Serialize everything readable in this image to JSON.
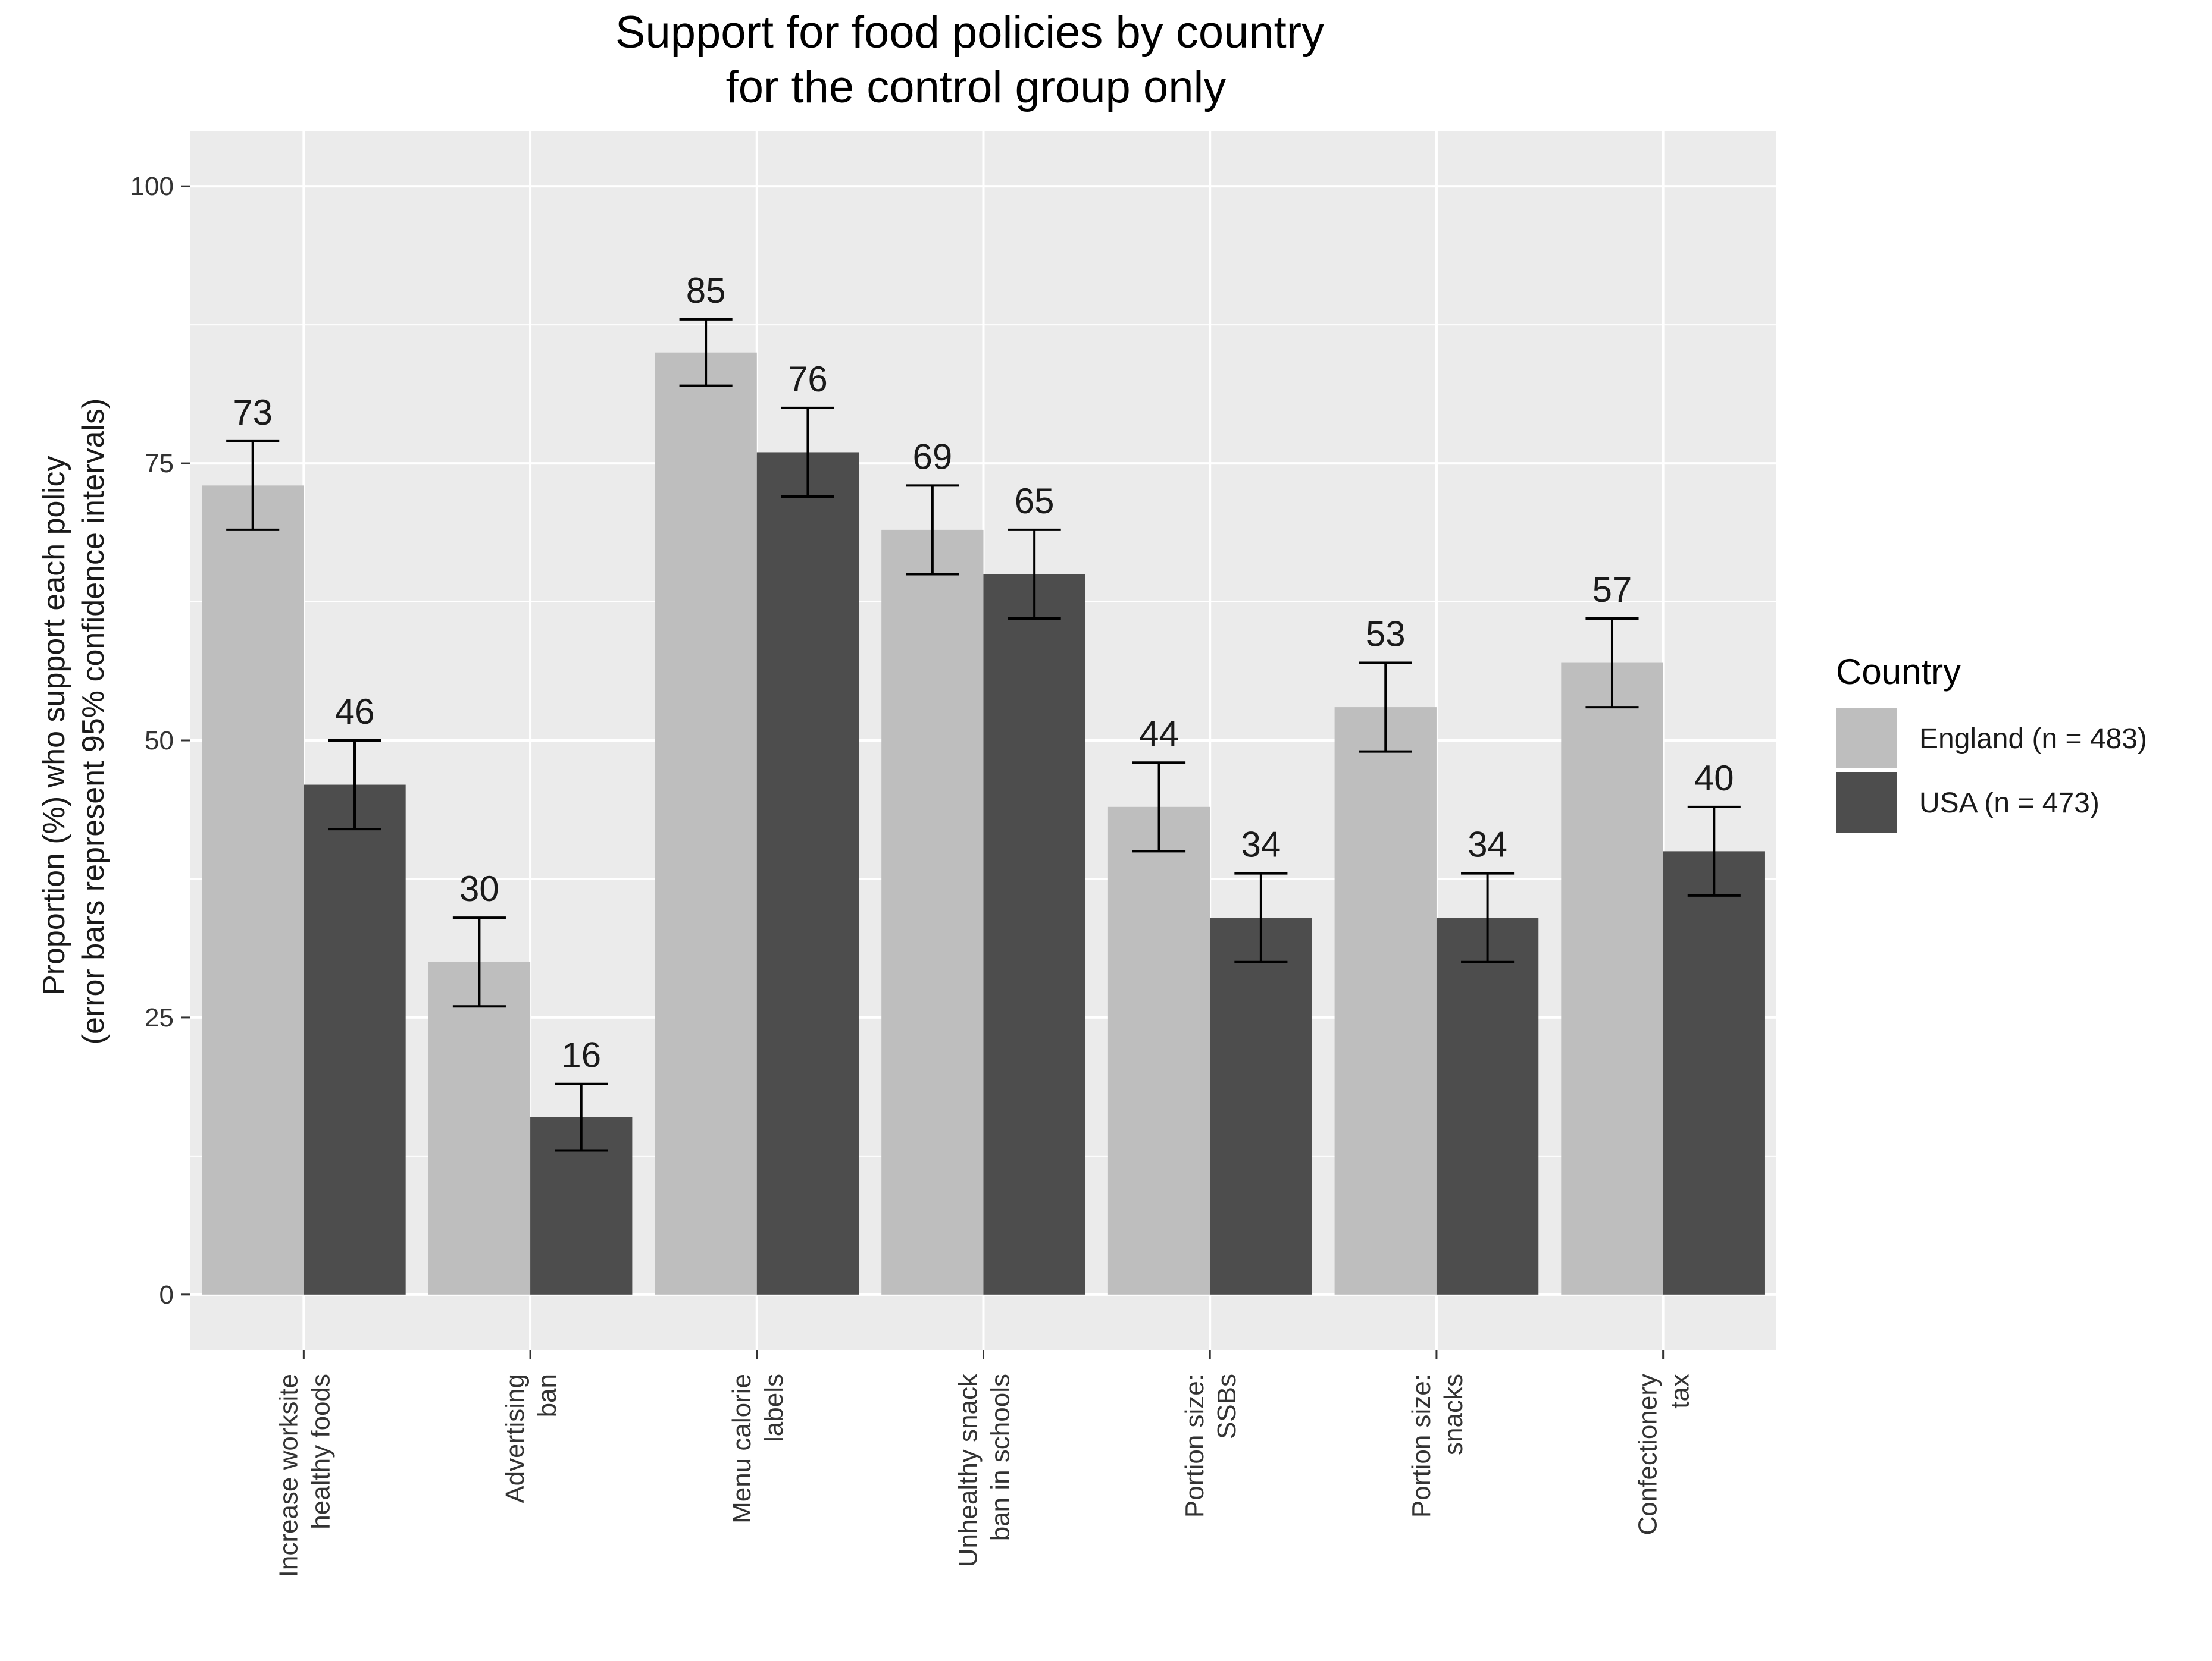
{
  "chart_data": {
    "type": "bar",
    "title": [
      "Support for food policies by country",
      "for the control group only"
    ],
    "ylabel": [
      "Proportion (%) who support each policy",
      "(error bars represent 95% confidence intervals)"
    ],
    "xlabel": "",
    "ylim": [
      -5,
      105
    ],
    "yticks": [
      0,
      25,
      50,
      75,
      100
    ],
    "categories": [
      [
        "Increase worksite",
        "healthy foods"
      ],
      [
        "Advertising",
        "ban"
      ],
      [
        "Menu calorie",
        "labels"
      ],
      [
        "Unhealthy snack",
        "ban in schools"
      ],
      [
        "Portion size:",
        "SSBs"
      ],
      [
        "Portion size:",
        "snacks"
      ],
      [
        "Confectionery",
        "tax"
      ]
    ],
    "series": [
      {
        "name": "England (n = 483)",
        "color": "#bebebe",
        "values": [
          73,
          30,
          85,
          69,
          44,
          53,
          57
        ],
        "ci_low": [
          69,
          26,
          82,
          65,
          40,
          49,
          53
        ],
        "ci_high": [
          77,
          34,
          88,
          73,
          48,
          57,
          61
        ]
      },
      {
        "name": "USA (n = 473)",
        "color": "#4d4d4d",
        "values": [
          46,
          16,
          76,
          65,
          34,
          34,
          40
        ],
        "ci_low": [
          42,
          13,
          72,
          61,
          30,
          30,
          36
        ],
        "ci_high": [
          50,
          19,
          80,
          69,
          38,
          38,
          44
        ]
      }
    ],
    "legend": {
      "title": "Country",
      "position": "right"
    },
    "grid": true,
    "panel_color": "#ebebeb"
  }
}
